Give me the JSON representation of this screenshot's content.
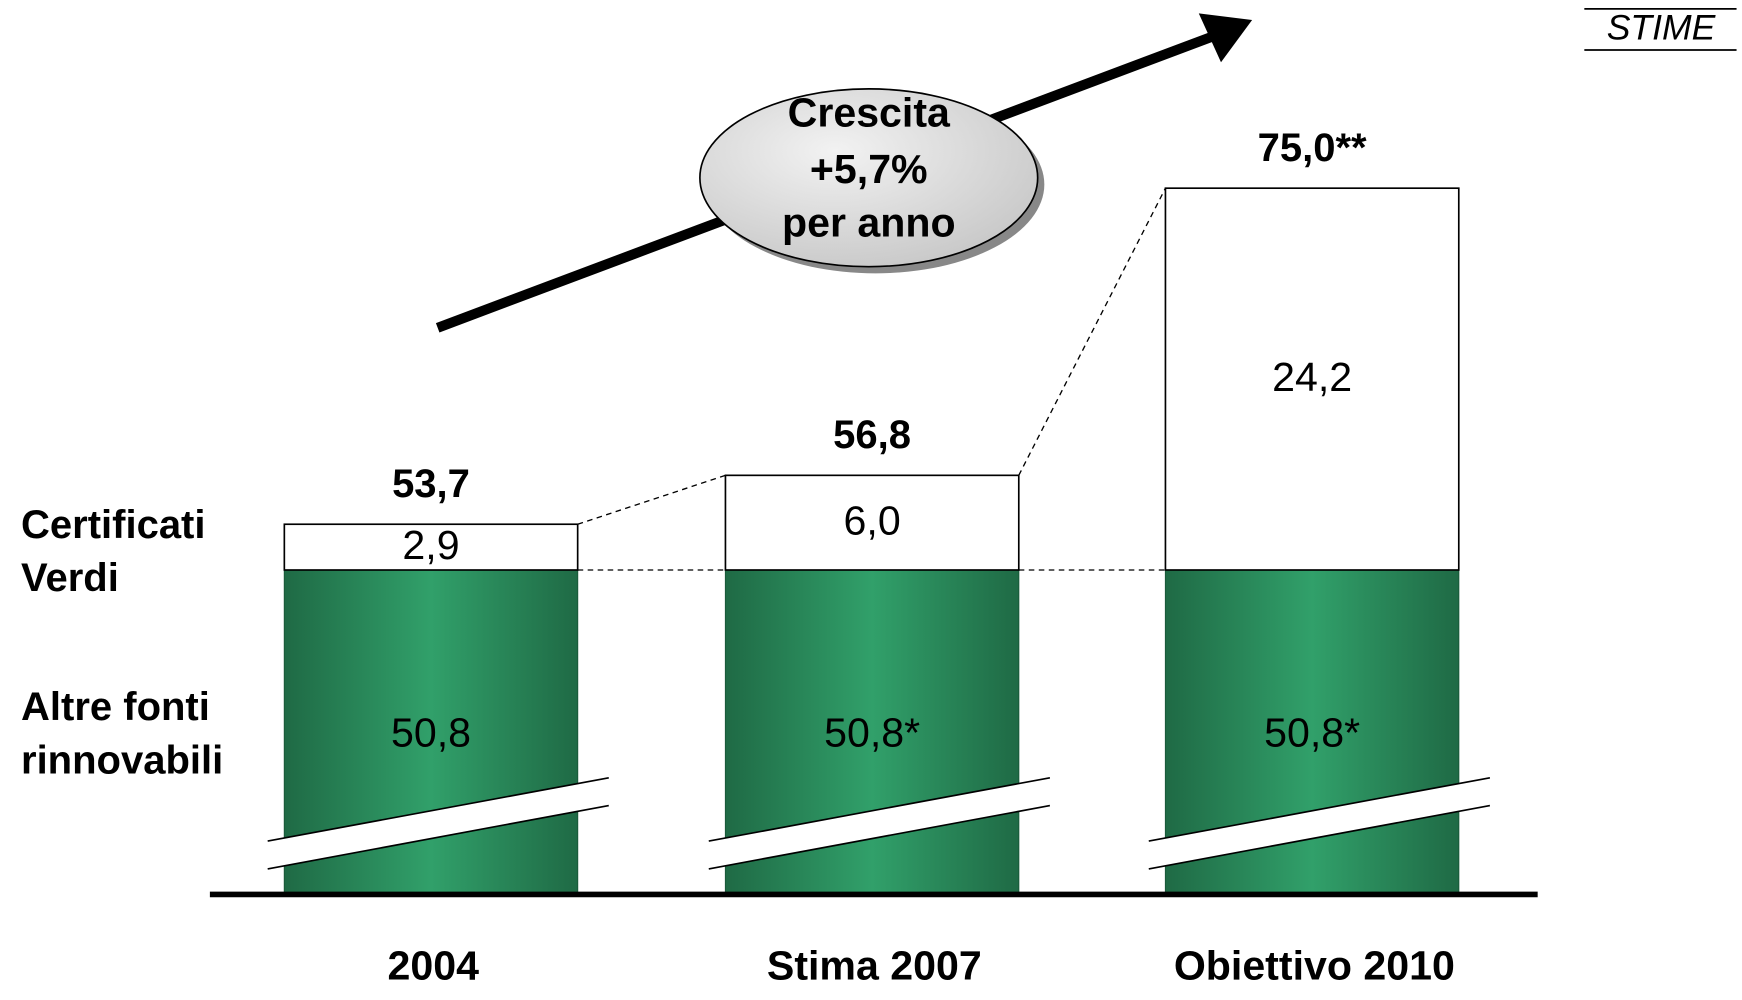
{
  "chart_data": {
    "type": "stacked_bar",
    "label": "STIME",
    "annotation": [
      "Crescita",
      "+5,7%",
      "per anno"
    ],
    "categories": [
      "2004",
      "Stima 2007",
      "Obiettivo 2010"
    ],
    "series": [
      {
        "name": "Altre fonti rinnovabili",
        "color": "#2e9664",
        "values": [
          50.8,
          50.8,
          50.8
        ],
        "value_labels": [
          "50,8",
          "50,8*",
          "50,8*"
        ]
      },
      {
        "name": "Certificati Verdi",
        "color": "#ffffff",
        "values": [
          2.9,
          6.0,
          24.2
        ],
        "value_labels": [
          "2,9",
          "6,0",
          "24,2"
        ]
      }
    ],
    "totals": [
      53.7,
      56.8,
      75.0
    ],
    "total_labels": [
      "53,7",
      "56,8",
      "75,0**"
    ]
  }
}
